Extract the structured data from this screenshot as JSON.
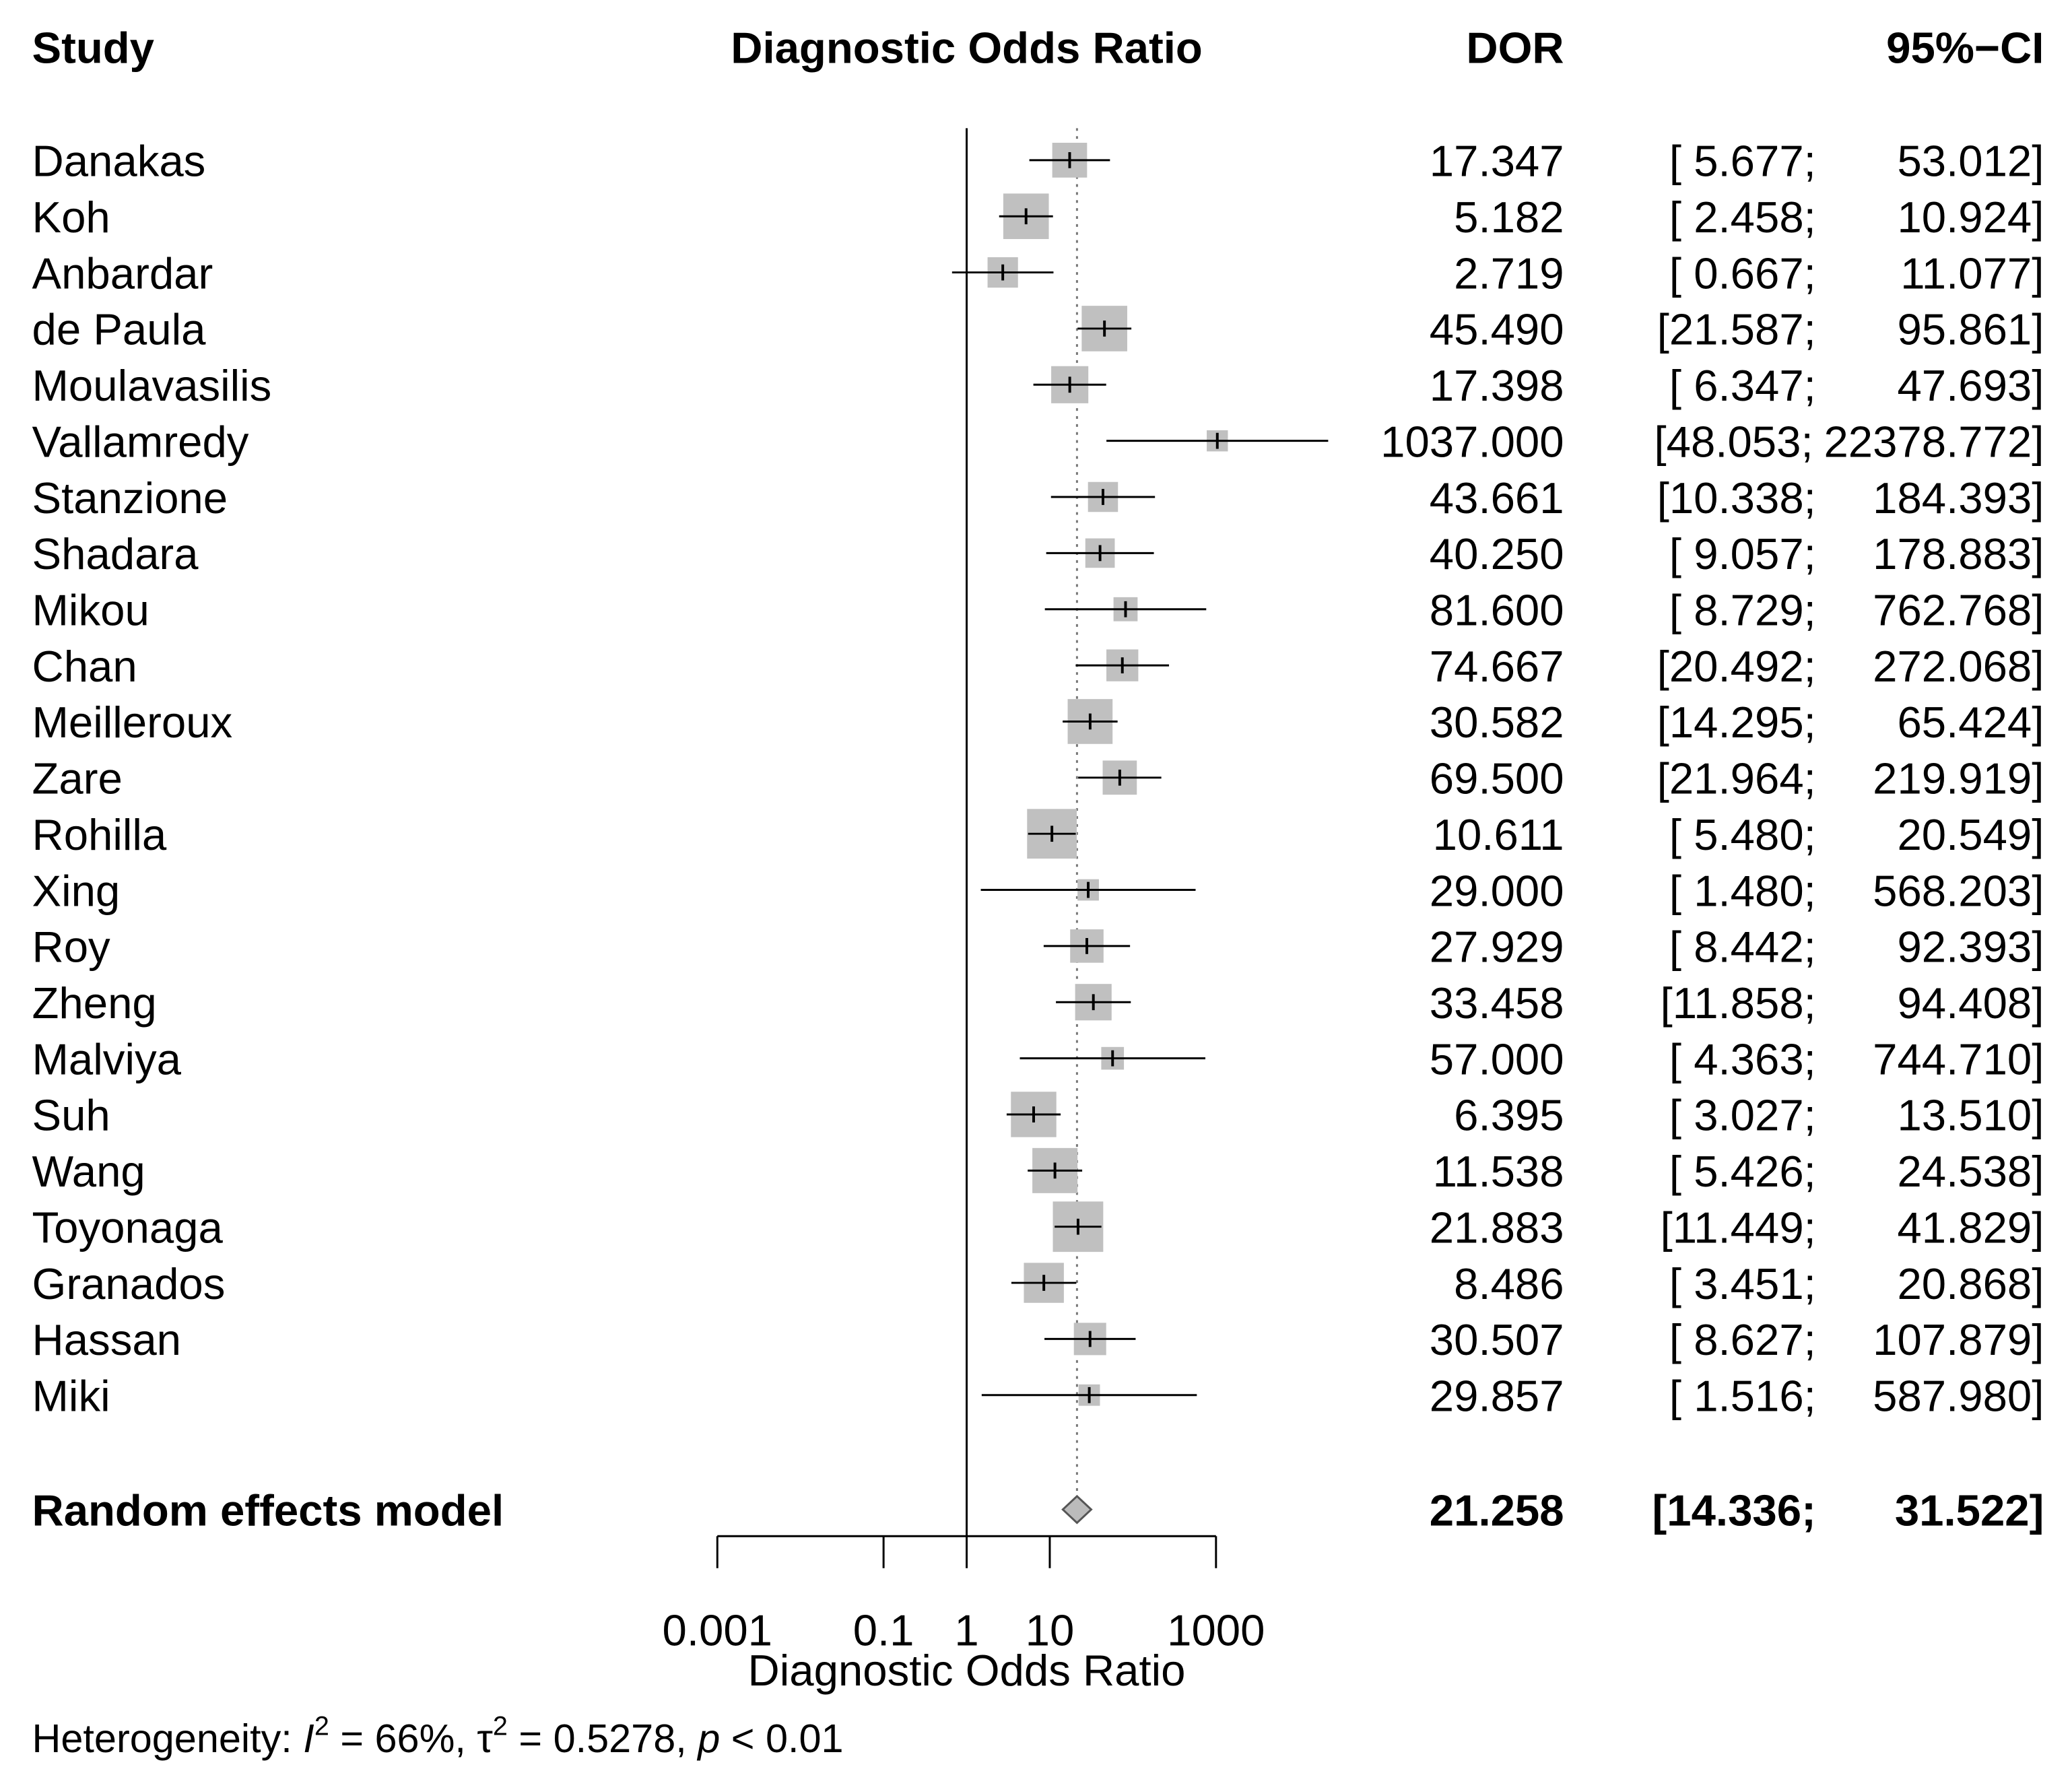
{
  "chart_data": {
    "type": "forest",
    "headers": {
      "study": "Study",
      "plot": "Diagnostic Odds Ratio",
      "estimate": "DOR",
      "ci": "95%−CI"
    },
    "categories": [
      "Danakas",
      "Koh",
      "Anbardar",
      "de Paula",
      "Moulavasilis",
      "Vallamredy",
      "Stanzione",
      "Shadara",
      "Mikou",
      "Chan",
      "Meilleroux",
      "Zare",
      "Rohilla",
      "Xing",
      "Roy",
      "Zheng",
      "Malviya",
      "Suh",
      "Wang",
      "Toyonaga",
      "Granados",
      "Hassan",
      "Miki"
    ],
    "values": [
      17.347,
      5.182,
      2.719,
      45.49,
      17.398,
      1037,
      43.661,
      40.25,
      81.6,
      74.667,
      30.582,
      69.5,
      10.611,
      29,
      27.929,
      33.458,
      57,
      6.395,
      11.538,
      21.883,
      8.486,
      30.507,
      29.857
    ],
    "value_labels": [
      "17.347",
      "5.182",
      "2.719",
      "45.490",
      "17.398",
      "1037.000",
      "43.661",
      "40.250",
      "81.600",
      "74.667",
      "30.582",
      "69.500",
      "10.611",
      "29.000",
      "27.929",
      "33.458",
      "57.000",
      "6.395",
      "11.538",
      "21.883",
      "8.486",
      "30.507",
      "29.857"
    ],
    "lower": [
      5.677,
      2.458,
      0.667,
      21.587,
      6.347,
      48.053,
      10.338,
      9.057,
      8.729,
      20.492,
      14.295,
      21.964,
      5.48,
      1.48,
      8.442,
      11.858,
      4.363,
      3.027,
      5.426,
      11.449,
      3.451,
      8.627,
      1.516
    ],
    "upper": [
      53.012,
      10.924,
      11.077,
      95.861,
      47.693,
      22378.772,
      184.393,
      178.883,
      762.768,
      272.068,
      65.424,
      219.919,
      20.549,
      568.203,
      92.393,
      94.408,
      744.71,
      13.51,
      24.538,
      41.829,
      20.868,
      107.879,
      587.98
    ],
    "lower_labels": [
      "[ 5.677;",
      "[ 2.458;",
      "[ 0.667;",
      "[21.587;",
      "[ 6.347;",
      "[48.053;",
      "[10.338;",
      "[ 9.057;",
      "[ 8.729;",
      "[20.492;",
      "[14.295;",
      "[21.964;",
      "[ 5.480;",
      "[ 1.480;",
      "[ 8.442;",
      "[11.858;",
      "[ 4.363;",
      "[ 3.027;",
      "[ 5.426;",
      "[11.449;",
      "[ 3.451;",
      "[ 8.627;",
      "[ 1.516;"
    ],
    "upper_labels": [
      "53.012]",
      "10.924]",
      "11.077]",
      "95.861]",
      "47.693]",
      "22378.772]",
      "184.393]",
      "178.883]",
      "762.768]",
      "272.068]",
      "65.424]",
      "219.919]",
      "20.549]",
      "568.203]",
      "92.393]",
      "94.408]",
      "744.710]",
      "13.510]",
      "24.538]",
      "41.829]",
      "20.868]",
      "107.879]",
      "587.980]"
    ],
    "pooled": {
      "name": "Random effects model",
      "value": 21.258,
      "value_label": "21.258",
      "lower": 14.336,
      "upper": 31.522,
      "lower_label": "[14.336;",
      "upper_label": "31.522]"
    },
    "null_value": 1,
    "xlim": [
      0.001,
      1000
    ],
    "xticks": [
      0.001,
      0.1,
      1,
      10,
      1000
    ],
    "log_x": true,
    "xlabel": "Diagnostic Odds Ratio",
    "box_color": "#c0c0c0",
    "heterogeneity": [
      "Heterogeneity: ",
      "I",
      "2",
      " = 66%, ",
      "τ",
      "2",
      " = 0.5278, ",
      "p",
      " < 0.01"
    ]
  }
}
